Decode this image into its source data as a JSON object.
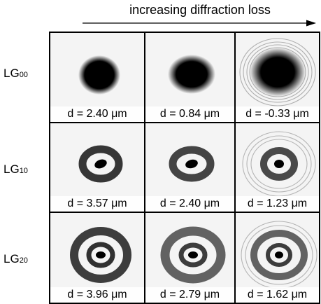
{
  "header": {
    "label": "increasing diffraction loss"
  },
  "rows": [
    {
      "label": "LG",
      "sub": "00",
      "cells": [
        {
          "caption": "d = 2.40 μm"
        },
        {
          "caption": "d = 0.84 μm"
        },
        {
          "caption": "d = -0.33 μm"
        }
      ]
    },
    {
      "label": "LG",
      "sub": "10",
      "cells": [
        {
          "caption": "d = 3.57 μm"
        },
        {
          "caption": "d = 2.40 μm"
        },
        {
          "caption": "d = 1.23 μm"
        }
      ]
    },
    {
      "label": "LG",
      "sub": "20",
      "cells": [
        {
          "caption": "d = 3.96 μm"
        },
        {
          "caption": "d = 2.79 μm"
        },
        {
          "caption": "d = 1.62 μm"
        }
      ]
    }
  ]
}
